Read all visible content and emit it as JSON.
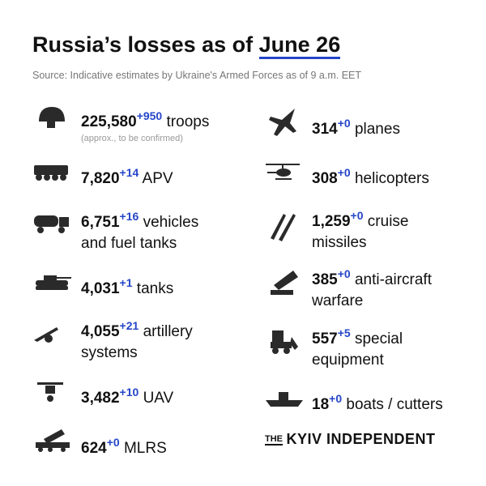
{
  "header": {
    "title": "Russia’s losses as of",
    "date": "June 26",
    "source": "Source: Indicative estimates by Ukraine's Armed Forces as of 9 a.m. EET"
  },
  "items": [
    {
      "value": "225,580",
      "delta": "+950",
      "label": [
        "troops"
      ],
      "note": "(approx., to be confirmed)"
    },
    {
      "value": "7,820",
      "delta": "+14",
      "label": [
        "APV"
      ]
    },
    {
      "value": "6,751",
      "delta": "+16",
      "label": [
        "vehicles",
        "and fuel tanks"
      ]
    },
    {
      "value": "4,031",
      "delta": "+1",
      "label": [
        "tanks"
      ]
    },
    {
      "value": "4,055",
      "delta": "+21",
      "label": [
        "artillery",
        "systems"
      ]
    },
    {
      "value": "3,482",
      "delta": "+10",
      "label": [
        "UAV"
      ]
    },
    {
      "value": "624",
      "delta": "+0",
      "label": [
        "MLRS"
      ]
    },
    {
      "value": "314",
      "delta": "+0",
      "label": [
        "planes"
      ]
    },
    {
      "value": "308",
      "delta": "+0",
      "label": [
        "helicopters"
      ]
    },
    {
      "value": "1,259",
      "delta": "+0",
      "label": [
        "cruise",
        "missiles"
      ]
    },
    {
      "value": "385",
      "delta": "+0",
      "label": [
        "anti-aircraft",
        "warfare"
      ]
    },
    {
      "value": "557",
      "delta": "+5",
      "label": [
        "special",
        "equipment"
      ]
    },
    {
      "value": "18",
      "delta": "+0",
      "label": [
        "boats / cutters"
      ]
    }
  ],
  "brand": {
    "prefix": "THE",
    "name": "KYIV INDEPENDENT"
  }
}
